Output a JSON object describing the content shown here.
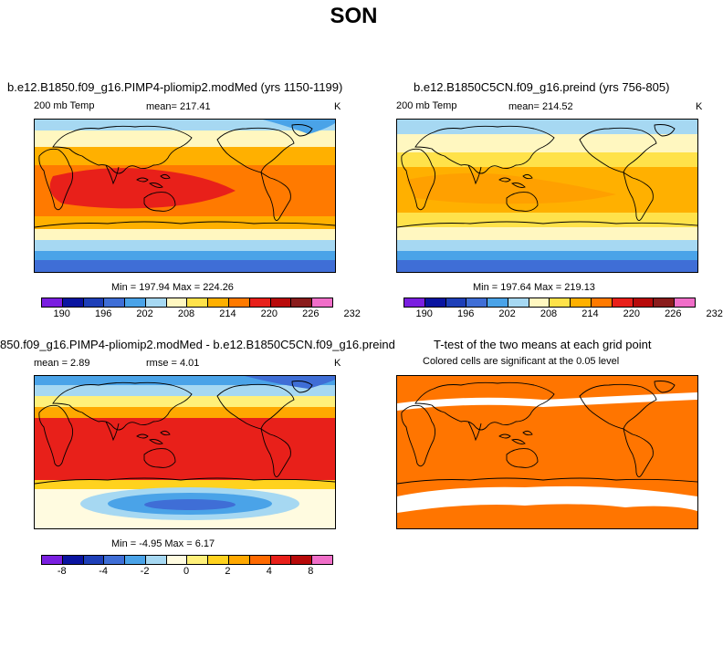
{
  "page_title": "SON",
  "colors": {
    "abs_scale": [
      "#7a1fe0",
      "#0a14a0",
      "#1e3fb8",
      "#3f6ed6",
      "#4aa3e8",
      "#a6d8f2",
      "#fff7c0",
      "#ffe24a",
      "#ffb000",
      "#ff7a00",
      "#e8201a",
      "#b80a0a",
      "#8a1c1c",
      "#f06ec8"
    ],
    "diff_scale": [
      "#7a1fe0",
      "#0a14a0",
      "#1e3fb8",
      "#3f6ed6",
      "#4aa3e8",
      "#a6d8f2",
      "#fffbe0",
      "#fff07a",
      "#ffd21e",
      "#ffa800",
      "#ff6a00",
      "#e8201a",
      "#b80a0a",
      "#f06ec8"
    ],
    "significant": "#ff7500"
  },
  "chart_data": [
    {
      "type": "heatmap",
      "title": "b.e12.B1850.f09_g16.PIMP4-pliomip2.modMed (yrs 1150-1199)",
      "left_label": "200 mb Temp",
      "mean_text": "mean= 217.41",
      "units": "K",
      "minmax_text": "Min = 197.94 Max = 224.26",
      "colorbar_ticks": [
        "190",
        "196",
        "202",
        "208",
        "214",
        "220",
        "226",
        "232"
      ],
      "min": 197.94,
      "max": 224.26,
      "mean": 217.41
    },
    {
      "type": "heatmap",
      "title": "b.e12.B1850C5CN.f09_g16.preind (yrs 756-805)",
      "left_label": "200 mb Temp",
      "mean_text": "mean= 214.52",
      "units": "K",
      "minmax_text": "Min = 197.64 Max = 219.13",
      "colorbar_ticks": [
        "190",
        "196",
        "202",
        "208",
        "214",
        "220",
        "226",
        "232"
      ],
      "min": 197.64,
      "max": 219.13,
      "mean": 214.52
    },
    {
      "type": "heatmap",
      "title": "850.f09_g16.PIMP4-pliomip2.modMed - b.e12.B1850C5CN.f09_g16.preind",
      "mean_text": "mean =   2.89",
      "rmse_text": "rmse =   4.01",
      "units": "K",
      "minmax_text": "Min =  -4.95 Max =   6.17",
      "colorbar_ticks": [
        "-8",
        "-4",
        "-2",
        "0",
        "2",
        "4",
        "8"
      ],
      "min": -4.95,
      "max": 6.17,
      "mean": 2.89,
      "rmse": 4.01
    },
    {
      "type": "heatmap",
      "title": "T-test of the two means at each grid point",
      "subtitle": "Colored cells are significant at the 0.05 level"
    }
  ]
}
